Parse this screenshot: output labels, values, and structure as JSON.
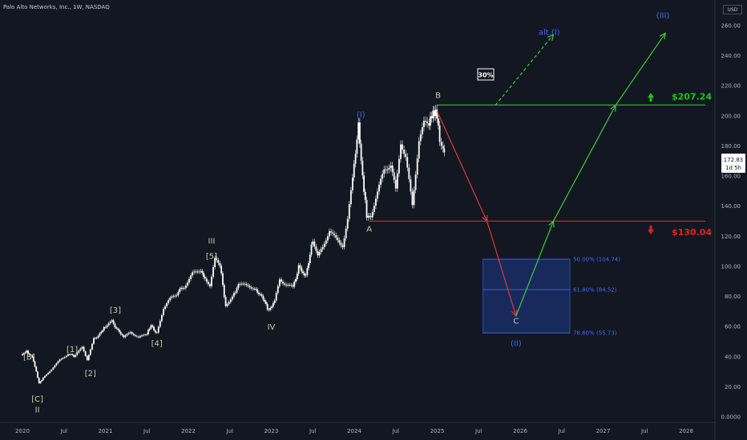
{
  "header": {
    "title": "Palo Alto Networks, Inc., 1W, NASDAQ",
    "currency": "USD"
  },
  "price_badge": {
    "price": "172.83",
    "countdown": "1d 5h"
  },
  "levels": {
    "upper": {
      "label": "$207.24",
      "value": 207.24,
      "color": "#22c21e"
    },
    "lower": {
      "label": "$130.04",
      "value": 130.04,
      "color": "#e0231f"
    }
  },
  "fib": [
    {
      "label": "50.00% (104.74)",
      "value": 104.74
    },
    {
      "label": "61.80% (84.52)",
      "value": 84.52
    },
    {
      "label": "78.60% (55.73)",
      "value": 55.73
    }
  ],
  "probability_badge": "30%",
  "colors": {
    "background": "#131722",
    "candle": "#ffffff",
    "wave_blue": "#3d6cf0",
    "wave_light": "#c9ccb0",
    "target_box": "#1e3a8a",
    "up_path": "#3ec93a",
    "down_path": "#e03a35"
  },
  "chart_data": {
    "type": "line",
    "title": "Palo Alto Networks, Inc., 1W, NASDAQ",
    "xlabel": "",
    "ylabel": "",
    "ylim": [
      0,
      265
    ],
    "xlim": [
      2020.0,
      2028.35
    ],
    "grid": false,
    "y_ticks": [
      "260.00",
      "240.00",
      "220.00",
      "200.00",
      "180.00",
      "160.00",
      "140.00",
      "120.00",
      "100.00",
      "80.00",
      "60.00",
      "40.00",
      "20.00",
      "0.0000"
    ],
    "y_tick_values": [
      260,
      240,
      220,
      200,
      180,
      160,
      140,
      120,
      100,
      80,
      60,
      40,
      20,
      0
    ],
    "x_ticks": [
      {
        "label": "2020",
        "x": 2020.0
      },
      {
        "label": "Jul",
        "x": 2020.5
      },
      {
        "label": "2021",
        "x": 2021.0
      },
      {
        "label": "Jul",
        "x": 2021.5
      },
      {
        "label": "2022",
        "x": 2022.0
      },
      {
        "label": "Jul",
        "x": 2022.5
      },
      {
        "label": "2023",
        "x": 2023.0
      },
      {
        "label": "Jul",
        "x": 2023.5
      },
      {
        "label": "2024",
        "x": 2024.0
      },
      {
        "label": "Jul",
        "x": 2024.5
      },
      {
        "label": "2025",
        "x": 2025.0
      },
      {
        "label": "Jul",
        "x": 2025.5
      },
      {
        "label": "2026",
        "x": 2026.0
      },
      {
        "label": "Jul",
        "x": 2026.5
      },
      {
        "label": "2027",
        "x": 2027.0
      },
      {
        "label": "Jul",
        "x": 2027.5
      },
      {
        "label": "2028",
        "x": 2028.0
      }
    ],
    "series": [
      {
        "values_x": [
          2020.0,
          2020.05,
          2020.12,
          2020.15,
          2020.2,
          2020.25,
          2020.35,
          2020.45,
          2020.55,
          2020.62,
          2020.72,
          2020.78,
          2020.86,
          2020.95,
          2021.0,
          2021.08,
          2021.15,
          2021.22,
          2021.3,
          2021.4,
          2021.5,
          2021.55,
          2021.62,
          2021.7,
          2021.78,
          2021.86,
          2021.95,
          2022.05,
          2022.15,
          2022.2,
          2022.26,
          2022.32,
          2022.38,
          2022.45,
          2022.55,
          2022.62,
          2022.7,
          2022.78,
          2022.85,
          2022.92,
          2022.97,
          2023.04,
          2023.1,
          2023.18,
          2023.26,
          2023.33,
          2023.4,
          2023.45,
          2023.5,
          2023.56,
          2023.62,
          2023.7,
          2023.78,
          2023.86,
          2023.92,
          2023.98,
          2024.05,
          2024.1,
          2024.15,
          2024.2,
          2024.28,
          2024.36,
          2024.44,
          2024.5,
          2024.56,
          2024.62,
          2024.7,
          2024.78,
          2024.84,
          2024.9,
          2024.95,
          2024.98,
          2025.03,
          2025.07,
          2025.1
        ],
        "values": [
          41,
          44,
          39,
          34,
          22,
          26,
          32,
          38,
          42,
          40,
          46,
          38,
          52,
          56,
          60,
          64,
          57,
          53,
          57,
          53,
          56,
          60,
          56,
          73,
          79,
          82,
          86,
          95,
          98,
          92,
          87,
          104,
          100,
          74,
          83,
          88,
          86,
          85,
          83,
          76,
          71,
          76,
          91,
          87,
          86,
          100,
          93,
          102,
          118,
          107,
          113,
          125,
          119,
          115,
          132,
          160,
          192,
          161,
          132,
          135,
          150,
          166,
          168,
          151,
          183,
          173,
          140,
          184,
          194,
          193,
          203,
          203,
          186,
          180,
          170
        ],
        "color": "#ffffff"
      }
    ],
    "waves": [
      {
        "label": "(I)",
        "x": 2024.08,
        "y": 199,
        "color": "wave_blue"
      },
      {
        "label": "(III)",
        "x": 2027.72,
        "y": 265,
        "color": "wave_blue"
      },
      {
        "label": "alt.(I)",
        "x": 2026.35,
        "y": 254,
        "color": "wave_blue"
      },
      {
        "label": "(II)",
        "x": 2025.95,
        "y": 47,
        "color": "wave_blue"
      },
      {
        "label": "[B]",
        "x": 2020.08,
        "y": 38,
        "color": "wave_light"
      },
      {
        "label": "[C]",
        "x": 2020.18,
        "y": 10,
        "color": "wave_light"
      },
      {
        "label": "II",
        "x": 2020.18,
        "y": 3,
        "color": "wave_light"
      },
      {
        "label": "[1]",
        "x": 2020.6,
        "y": 43,
        "color": "wave_light"
      },
      {
        "label": "[2]",
        "x": 2020.82,
        "y": 27,
        "color": "wave_light"
      },
      {
        "label": "[3]",
        "x": 2021.12,
        "y": 69,
        "color": "wave_light"
      },
      {
        "label": "[4]",
        "x": 2021.62,
        "y": 47,
        "color": "wave_light"
      },
      {
        "label": "III",
        "x": 2022.28,
        "y": 115,
        "color": "wave_light"
      },
      {
        "label": "[5]",
        "x": 2022.28,
        "y": 105,
        "color": "wave_light"
      },
      {
        "label": "IV",
        "x": 2023.0,
        "y": 58,
        "color": "wave_light"
      },
      {
        "label": "A",
        "x": 2024.18,
        "y": 123,
        "color": "wave_light"
      },
      {
        "label": "B",
        "x": 2025.01,
        "y": 212,
        "color": "wave_light"
      },
      {
        "label": "C",
        "x": 2025.95,
        "y": 62,
        "color": "wave_light"
      }
    ],
    "down_path": [
      [
        2025.0,
        203
      ],
      [
        2025.6,
        130
      ],
      [
        2025.95,
        67
      ]
    ],
    "up_path": [
      [
        2025.95,
        67
      ],
      [
        2026.4,
        130
      ],
      [
        2027.15,
        207
      ],
      [
        2027.75,
        255
      ]
    ],
    "alt_path": [
      [
        2025.7,
        207
      ],
      [
        2026.4,
        254
      ]
    ],
    "target_zone": {
      "x0": 2025.55,
      "x1": 2026.6,
      "y0": 55.73,
      "y1": 104.74
    }
  }
}
